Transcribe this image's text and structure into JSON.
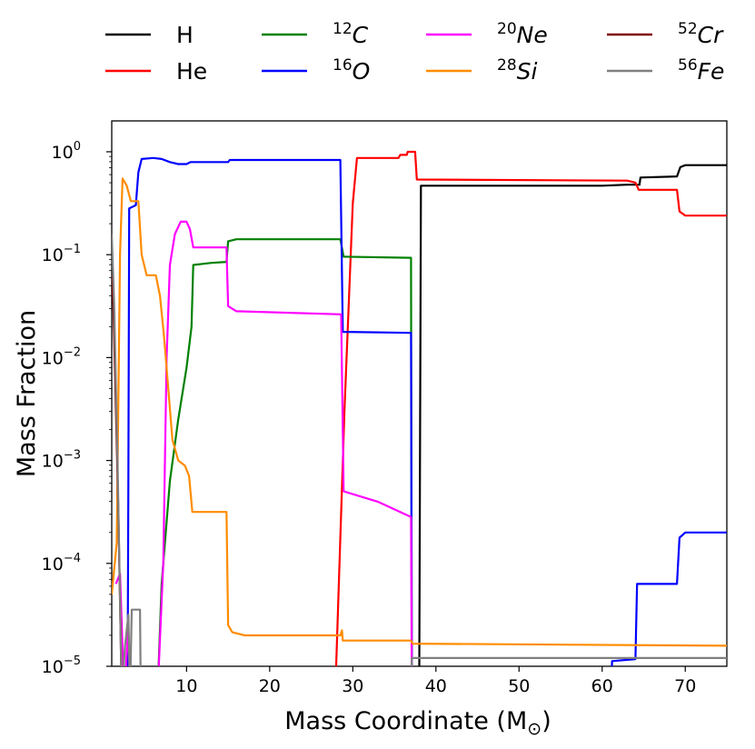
{
  "chart_data": {
    "type": "line",
    "xlabel_text": "Mass Coordinate",
    "xlabel_unit": "M",
    "xlabel_sub": "⊙",
    "ylabel": "Mass Fraction",
    "yscale": "log",
    "xlim": [
      1,
      75
    ],
    "ylim_exp": [
      -5,
      0.3
    ],
    "x_ticks": [
      10,
      20,
      30,
      40,
      50,
      60,
      70
    ],
    "y_tick_exps": [
      0,
      -1,
      -2,
      -3,
      -4,
      -5
    ],
    "y_tick_base": "10",
    "legend_position": "top",
    "series": [
      {
        "name": "H",
        "mass_number": "",
        "element": "H",
        "color": "#000000",
        "points": [
          [
            37.5,
            -5.3
          ],
          [
            38.0,
            -5.0
          ],
          [
            38.2,
            -0.33
          ],
          [
            50,
            -0.33
          ],
          [
            60,
            -0.33
          ],
          [
            63,
            -0.32
          ],
          [
            64.5,
            -0.32
          ],
          [
            64.6,
            -0.25
          ],
          [
            69,
            -0.24
          ],
          [
            69.4,
            -0.15
          ],
          [
            70,
            -0.13
          ],
          [
            75,
            -0.13
          ]
        ]
      },
      {
        "name": "He",
        "mass_number": "",
        "element": "He",
        "color": "#ff0000",
        "points": [
          [
            27.5,
            -5.3
          ],
          [
            28,
            -5.0
          ],
          [
            29,
            -2.5
          ],
          [
            30,
            -0.5
          ],
          [
            30.5,
            -0.06
          ],
          [
            35.5,
            -0.06
          ],
          [
            35.7,
            -0.03
          ],
          [
            36.5,
            -0.03
          ],
          [
            36.6,
            0.0
          ],
          [
            37.5,
            0.0
          ],
          [
            37.7,
            -0.27
          ],
          [
            63,
            -0.28
          ],
          [
            64,
            -0.3
          ],
          [
            64.4,
            -0.37
          ],
          [
            69,
            -0.37
          ],
          [
            69.3,
            -0.58
          ],
          [
            70,
            -0.62
          ],
          [
            75,
            -0.62
          ]
        ]
      },
      {
        "name": "12C",
        "mass_number": "12",
        "element": "C",
        "color": "#008000",
        "points": [
          [
            6.5,
            -5.3
          ],
          [
            7,
            -4.2
          ],
          [
            8,
            -3.2
          ],
          [
            9,
            -2.6
          ],
          [
            10,
            -2.1
          ],
          [
            10.6,
            -1.7
          ],
          [
            10.8,
            -1.1
          ],
          [
            13,
            -1.08
          ],
          [
            14.8,
            -1.07
          ],
          [
            15,
            -0.87
          ],
          [
            16,
            -0.85
          ],
          [
            28.5,
            -0.85
          ],
          [
            28.9,
            -1.02
          ],
          [
            37.0,
            -1.03
          ],
          [
            37.1,
            -5.3
          ]
        ]
      },
      {
        "name": "16O",
        "mass_number": "16",
        "element": "O",
        "color": "#0000ff",
        "points": [
          [
            2.9,
            -5.3
          ],
          [
            3.0,
            -3.2
          ],
          [
            3.1,
            -0.55
          ],
          [
            3.9,
            -0.52
          ],
          [
            4.2,
            -0.2
          ],
          [
            4.6,
            -0.07
          ],
          [
            6,
            -0.06
          ],
          [
            7,
            -0.07
          ],
          [
            8,
            -0.1
          ],
          [
            9,
            -0.12
          ],
          [
            10,
            -0.12
          ],
          [
            10.5,
            -0.1
          ],
          [
            15,
            -0.1
          ],
          [
            15.2,
            -0.08
          ],
          [
            28.5,
            -0.08
          ],
          [
            28.8,
            -1.75
          ],
          [
            37.0,
            -1.76
          ],
          [
            37.1,
            -5.3
          ],
          [
            61,
            -5.3
          ],
          [
            61.2,
            -4.95
          ],
          [
            64,
            -4.93
          ],
          [
            64.2,
            -4.2
          ],
          [
            69,
            -4.2
          ],
          [
            69.3,
            -3.75
          ],
          [
            70,
            -3.7
          ],
          [
            75,
            -3.7
          ]
        ]
      },
      {
        "name": "20Ne",
        "mass_number": "20",
        "element": "Ne",
        "color": "#ff00ff",
        "points": [
          [
            1.5,
            -4.2
          ],
          [
            2.0,
            -4.1
          ],
          [
            2.5,
            -5.3
          ],
          [
            3.0,
            -4.6
          ],
          [
            3.2,
            -5.3
          ],
          [
            6.5,
            -5.3
          ],
          [
            7.2,
            -4.0
          ],
          [
            7.6,
            -2.0
          ],
          [
            8.0,
            -1.1
          ],
          [
            8.6,
            -0.8
          ],
          [
            9.3,
            -0.68
          ],
          [
            10,
            -0.68
          ],
          [
            10.4,
            -0.75
          ],
          [
            10.8,
            -0.93
          ],
          [
            14.8,
            -0.93
          ],
          [
            15,
            -1.5
          ],
          [
            16,
            -1.55
          ],
          [
            28.6,
            -1.58
          ],
          [
            28.9,
            -3.3
          ],
          [
            33,
            -3.4
          ],
          [
            37.0,
            -3.55
          ],
          [
            37.1,
            -5.3
          ]
        ]
      },
      {
        "name": "28Si",
        "mass_number": "28",
        "element": "Si",
        "color": "#ff8c00",
        "points": [
          [
            1.0,
            -4.3
          ],
          [
            1.6,
            -3.8
          ],
          [
            2.0,
            -1.0
          ],
          [
            2.3,
            -0.26
          ],
          [
            2.8,
            -0.33
          ],
          [
            3.3,
            -0.48
          ],
          [
            4.2,
            -0.48
          ],
          [
            4.6,
            -1.0
          ],
          [
            5.2,
            -1.2
          ],
          [
            6.3,
            -1.2
          ],
          [
            6.8,
            -1.4
          ],
          [
            7.3,
            -1.8
          ],
          [
            7.8,
            -2.3
          ],
          [
            8.3,
            -2.8
          ],
          [
            9.0,
            -3.0
          ],
          [
            9.8,
            -3.05
          ],
          [
            10.3,
            -3.15
          ],
          [
            10.7,
            -3.5
          ],
          [
            14.8,
            -3.5
          ],
          [
            15.0,
            -4.6
          ],
          [
            15.5,
            -4.67
          ],
          [
            17,
            -4.7
          ],
          [
            28.5,
            -4.7
          ],
          [
            28.7,
            -4.65
          ],
          [
            28.8,
            -4.75
          ],
          [
            37.0,
            -4.75
          ],
          [
            37.2,
            -4.78
          ],
          [
            75,
            -4.8
          ]
        ]
      },
      {
        "name": "52Cr",
        "mass_number": "52",
        "element": "Cr",
        "color": "#800000",
        "points": [
          [
            1.0,
            -1.2
          ],
          [
            1.2,
            -1.5
          ],
          [
            1.5,
            -2.5
          ],
          [
            1.8,
            -3.5
          ],
          [
            2.2,
            -5.3
          ]
        ]
      },
      {
        "name": "56Fe",
        "mass_number": "56",
        "element": "Fe",
        "color": "#808080",
        "points": [
          [
            1.0,
            -0.8
          ],
          [
            1.3,
            -1.5
          ],
          [
            1.7,
            -3.0
          ],
          [
            2.2,
            -5.3
          ],
          [
            2.6,
            -4.8
          ],
          [
            3.0,
            -4.5
          ],
          [
            3.2,
            -5.3
          ],
          [
            3.4,
            -4.45
          ],
          [
            4.4,
            -4.45
          ],
          [
            4.5,
            -5.3
          ],
          [
            37.0,
            -5.3
          ],
          [
            37.1,
            -4.92
          ],
          [
            75,
            -4.92
          ]
        ]
      }
    ]
  }
}
